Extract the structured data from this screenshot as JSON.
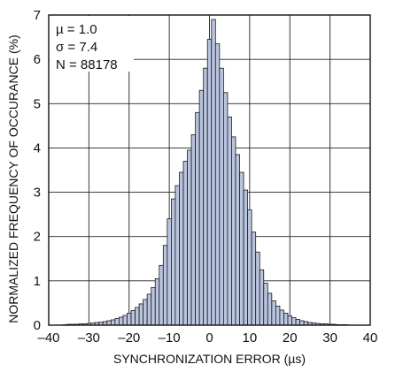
{
  "chart_data": {
    "type": "bar",
    "title": "",
    "xlabel": "SYNCHRONIZATION ERROR (µs)",
    "ylabel": "NORMALIZED FREQUENCY OF OCCURANCE (%)",
    "xlim": [
      -40,
      40
    ],
    "ylim": [
      0,
      7
    ],
    "xticks": [
      -40,
      -30,
      -20,
      -10,
      0,
      10,
      20,
      30,
      40
    ],
    "xtick_labels": [
      "–40",
      "–30",
      "–20",
      "–10",
      "0",
      "10",
      "20",
      "30",
      "40"
    ],
    "yticks": [
      0,
      1,
      2,
      3,
      4,
      5,
      6,
      7
    ],
    "ytick_labels": [
      "0",
      "1",
      "2",
      "3",
      "4",
      "5",
      "6",
      "7"
    ],
    "grid": true,
    "bar_color": "#b9c4df",
    "bin_width": 1,
    "stats": [
      "µ = 1.0",
      "σ = 7.4",
      "N = 88178"
    ],
    "x": [
      -36,
      -35,
      -34,
      -33,
      -32,
      -31,
      -30,
      -29,
      -28,
      -27,
      -26,
      -25,
      -24,
      -23,
      -22,
      -21,
      -20,
      -19,
      -18,
      -17,
      -16,
      -15,
      -14,
      -13,
      -12,
      -11,
      -10,
      -9,
      -8,
      -7,
      -6,
      -5,
      -4,
      -3,
      -2,
      -1,
      0,
      1,
      2,
      3,
      4,
      5,
      6,
      7,
      8,
      9,
      10,
      11,
      12,
      13,
      14,
      15,
      16,
      17,
      18,
      19,
      20,
      21,
      22,
      23,
      24,
      25,
      26,
      27,
      28,
      29,
      30,
      31,
      32,
      33,
      34
    ],
    "values": [
      0.01,
      0.02,
      0.02,
      0.02,
      0.03,
      0.03,
      0.04,
      0.05,
      0.06,
      0.07,
      0.08,
      0.1,
      0.12,
      0.15,
      0.18,
      0.22,
      0.27,
      0.33,
      0.4,
      0.48,
      0.58,
      0.7,
      0.85,
      1.05,
      1.35,
      1.8,
      2.4,
      2.85,
      3.15,
      3.45,
      3.7,
      3.95,
      4.3,
      4.8,
      5.3,
      5.8,
      6.45,
      6.9,
      6.35,
      5.8,
      5.25,
      4.7,
      4.25,
      3.85,
      3.45,
      3.05,
      2.6,
      2.1,
      1.65,
      1.25,
      0.95,
      0.72,
      0.55,
      0.43,
      0.34,
      0.27,
      0.21,
      0.17,
      0.13,
      0.1,
      0.08,
      0.06,
      0.05,
      0.04,
      0.03,
      0.03,
      0.02,
      0.02,
      0.01,
      0.01,
      0.01
    ]
  }
}
